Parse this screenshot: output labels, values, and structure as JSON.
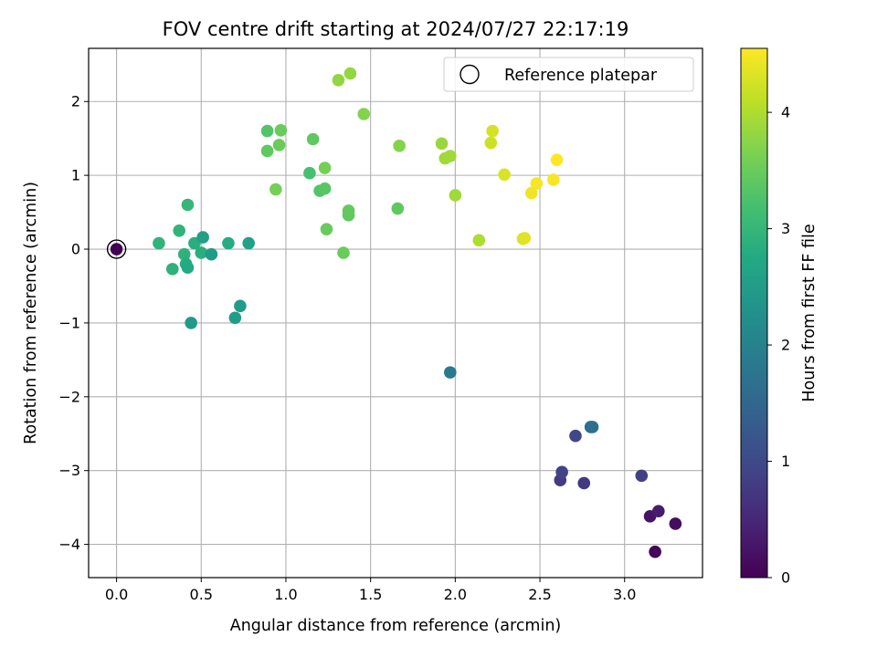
{
  "chart_data": {
    "type": "scatter",
    "title": "FOV centre drift starting at 2024/07/27 22:17:19",
    "xlabel": "Angular distance from reference (arcmin)",
    "ylabel": "Rotation from reference (arcmin)",
    "xlim": [
      -0.165,
      3.46
    ],
    "ylim": [
      -4.45,
      2.72
    ],
    "xticks": [
      0.0,
      0.5,
      1.0,
      1.5,
      2.0,
      2.5,
      3.0
    ],
    "xtick_labels": [
      "0.0",
      "0.5",
      "1.0",
      "1.5",
      "2.0",
      "2.5",
      "3.0"
    ],
    "yticks": [
      -4,
      -3,
      -2,
      -1,
      0,
      1,
      2
    ],
    "ytick_labels": [
      "−4",
      "−3",
      "−2",
      "−1",
      "0",
      "1",
      "2"
    ],
    "grid": true,
    "legend": {
      "position": "top-right",
      "entries": [
        "Reference platepar"
      ]
    },
    "reference_point": {
      "x": 0.0,
      "y": 0.0
    },
    "colorbar": {
      "label": "Hours from first FF file",
      "colormap": "viridis",
      "range": [
        0,
        4.55
      ],
      "ticks": [
        0,
        1,
        2,
        3,
        4
      ],
      "tick_labels": [
        "0",
        "1",
        "2",
        "3",
        "4"
      ]
    },
    "points": [
      {
        "x": 3.18,
        "y": -4.1,
        "c": 0.05
      },
      {
        "x": 3.3,
        "y": -3.72,
        "c": 0.15
      },
      {
        "x": 3.15,
        "y": -3.62,
        "c": 0.25
      },
      {
        "x": 3.2,
        "y": -3.55,
        "c": 0.35
      },
      {
        "x": 3.1,
        "y": -3.07,
        "c": 0.85
      },
      {
        "x": 2.76,
        "y": -3.17,
        "c": 0.75
      },
      {
        "x": 2.62,
        "y": -3.13,
        "c": 0.8
      },
      {
        "x": 2.63,
        "y": -3.02,
        "c": 0.9
      },
      {
        "x": 2.71,
        "y": -2.53,
        "c": 0.95
      },
      {
        "x": 2.8,
        "y": -2.41,
        "c": 1.6
      },
      {
        "x": 2.81,
        "y": -2.41,
        "c": 1.65
      },
      {
        "x": 1.97,
        "y": -1.67,
        "c": 1.85
      },
      {
        "x": 0.0,
        "y": 0.0,
        "c": 0.0
      },
      {
        "x": 0.25,
        "y": 0.08,
        "c": 2.95
      },
      {
        "x": 0.33,
        "y": -0.27,
        "c": 2.9
      },
      {
        "x": 0.37,
        "y": 0.25,
        "c": 2.95
      },
      {
        "x": 0.4,
        "y": -0.07,
        "c": 2.9
      },
      {
        "x": 0.41,
        "y": -0.2,
        "c": 2.8
      },
      {
        "x": 0.42,
        "y": -0.25,
        "c": 2.75
      },
      {
        "x": 0.42,
        "y": 0.6,
        "c": 3.0
      },
      {
        "x": 0.44,
        "y": -1.0,
        "c": 2.45
      },
      {
        "x": 0.46,
        "y": 0.08,
        "c": 2.85
      },
      {
        "x": 0.5,
        "y": -0.05,
        "c": 2.85
      },
      {
        "x": 0.51,
        "y": 0.16,
        "c": 2.55
      },
      {
        "x": 0.56,
        "y": -0.07,
        "c": 2.5
      },
      {
        "x": 0.66,
        "y": 0.08,
        "c": 2.8
      },
      {
        "x": 0.7,
        "y": -0.93,
        "c": 2.5
      },
      {
        "x": 0.73,
        "y": -0.77,
        "c": 2.5
      },
      {
        "x": 0.78,
        "y": 0.08,
        "c": 2.6
      },
      {
        "x": 0.89,
        "y": 1.33,
        "c": 3.4
      },
      {
        "x": 0.89,
        "y": 1.6,
        "c": 3.3
      },
      {
        "x": 0.94,
        "y": 0.81,
        "c": 3.6
      },
      {
        "x": 0.96,
        "y": 1.41,
        "c": 3.5
      },
      {
        "x": 0.97,
        "y": 1.61,
        "c": 3.5
      },
      {
        "x": 1.14,
        "y": 1.03,
        "c": 3.2
      },
      {
        "x": 1.16,
        "y": 1.49,
        "c": 3.4
      },
      {
        "x": 1.2,
        "y": 0.79,
        "c": 3.3
      },
      {
        "x": 1.23,
        "y": 0.82,
        "c": 3.35
      },
      {
        "x": 1.23,
        "y": 1.1,
        "c": 3.6
      },
      {
        "x": 1.24,
        "y": 0.27,
        "c": 3.5
      },
      {
        "x": 1.31,
        "y": 2.29,
        "c": 3.8
      },
      {
        "x": 1.34,
        "y": -0.05,
        "c": 3.5
      },
      {
        "x": 1.37,
        "y": 0.46,
        "c": 3.4
      },
      {
        "x": 1.37,
        "y": 0.52,
        "c": 3.45
      },
      {
        "x": 1.38,
        "y": 2.38,
        "c": 3.8
      },
      {
        "x": 1.46,
        "y": 1.83,
        "c": 3.7
      },
      {
        "x": 1.66,
        "y": 0.55,
        "c": 3.4
      },
      {
        "x": 1.67,
        "y": 1.4,
        "c": 3.7
      },
      {
        "x": 1.92,
        "y": 1.43,
        "c": 3.85
      },
      {
        "x": 1.94,
        "y": 1.23,
        "c": 3.9
      },
      {
        "x": 1.97,
        "y": 1.26,
        "c": 3.9
      },
      {
        "x": 2.0,
        "y": 0.73,
        "c": 3.9
      },
      {
        "x": 2.14,
        "y": 0.12,
        "c": 4.0
      },
      {
        "x": 2.21,
        "y": 1.44,
        "c": 4.2
      },
      {
        "x": 2.22,
        "y": 1.6,
        "c": 4.25
      },
      {
        "x": 2.29,
        "y": 1.01,
        "c": 4.3
      },
      {
        "x": 2.4,
        "y": 0.14,
        "c": 4.3
      },
      {
        "x": 2.41,
        "y": 0.15,
        "c": 4.35
      },
      {
        "x": 2.45,
        "y": 0.76,
        "c": 4.45
      },
      {
        "x": 2.48,
        "y": 0.89,
        "c": 4.5
      },
      {
        "x": 2.58,
        "y": 0.94,
        "c": 4.5
      },
      {
        "x": 2.6,
        "y": 1.21,
        "c": 4.55
      }
    ]
  }
}
